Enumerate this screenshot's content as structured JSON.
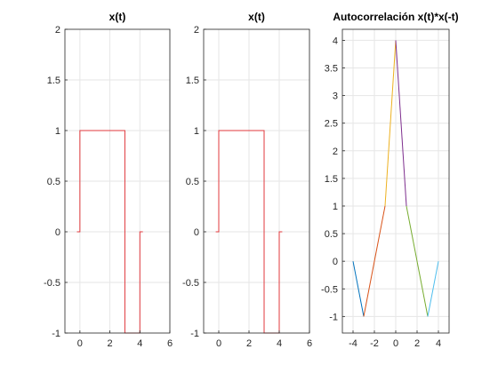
{
  "colors": {
    "signal": "#e0393e",
    "grid": "#e6e6e6",
    "axis": "#262626",
    "series": [
      "#0072bd",
      "#d95319",
      "#edb120",
      "#7e2f8e",
      "#77ac30",
      "#4dbeee"
    ]
  },
  "chart_data": [
    {
      "type": "line",
      "title": "x(t)",
      "xlim": [
        -1,
        6
      ],
      "ylim": [
        -1,
        2
      ],
      "xticks": [
        0,
        2,
        4,
        6
      ],
      "yticks": [
        -1,
        -0.5,
        0,
        0.5,
        1,
        1.5,
        2
      ],
      "xtick_labels": [
        "0",
        "2",
        "4",
        "6"
      ],
      "ytick_labels": [
        "-1",
        "-0.5",
        "0",
        "0.5",
        "1",
        "1.5",
        "2"
      ],
      "grid": true,
      "series": [
        {
          "x": [
            -0.2,
            0,
            0,
            3,
            3,
            4,
            4,
            4.2
          ],
          "y": [
            0,
            0,
            1,
            1,
            -1,
            -1,
            0,
            0
          ]
        }
      ]
    },
    {
      "type": "line",
      "title": "x(t)",
      "xlim": [
        -1,
        6
      ],
      "ylim": [
        -1,
        2
      ],
      "xticks": [
        0,
        2,
        4,
        6
      ],
      "yticks": [
        -1,
        -0.5,
        0,
        0.5,
        1,
        1.5,
        2
      ],
      "xtick_labels": [
        "0",
        "2",
        "4",
        "6"
      ],
      "ytick_labels": [
        "-1",
        "-0.5",
        "0",
        "0.5",
        "1",
        "1.5",
        "2"
      ],
      "grid": true,
      "series": [
        {
          "x": [
            -0.2,
            0,
            0,
            3,
            3,
            4,
            4,
            4.2
          ],
          "y": [
            0,
            0,
            1,
            1,
            -1,
            -1,
            0,
            0
          ]
        }
      ]
    },
    {
      "type": "line",
      "title": "Autocorrelación x(t)*x(-t)",
      "xlim": [
        -5,
        5
      ],
      "ylim": [
        -1.3,
        4.2
      ],
      "xticks": [
        -4,
        -2,
        0,
        2,
        4
      ],
      "yticks": [
        -1,
        -0.5,
        0,
        0.5,
        1,
        1.5,
        2,
        2.5,
        3,
        3.5,
        4
      ],
      "xtick_labels": [
        "-4",
        "-2",
        "0",
        "2",
        "4"
      ],
      "ytick_labels": [
        "-1",
        "-0.5",
        "0",
        "0.5",
        "1",
        "1.5",
        "2",
        "2.5",
        "3",
        "3.5",
        "4"
      ],
      "grid": true,
      "series": [
        {
          "x": [
            -4,
            -3
          ],
          "y": [
            0,
            -1
          ]
        },
        {
          "x": [
            -3,
            -1
          ],
          "y": [
            -1,
            1
          ]
        },
        {
          "x": [
            -1,
            0
          ],
          "y": [
            1,
            4
          ]
        },
        {
          "x": [
            0,
            1
          ],
          "y": [
            4,
            1
          ]
        },
        {
          "x": [
            1,
            3
          ],
          "y": [
            1,
            -1
          ]
        },
        {
          "x": [
            3,
            4
          ],
          "y": [
            -1,
            0
          ]
        }
      ]
    }
  ]
}
